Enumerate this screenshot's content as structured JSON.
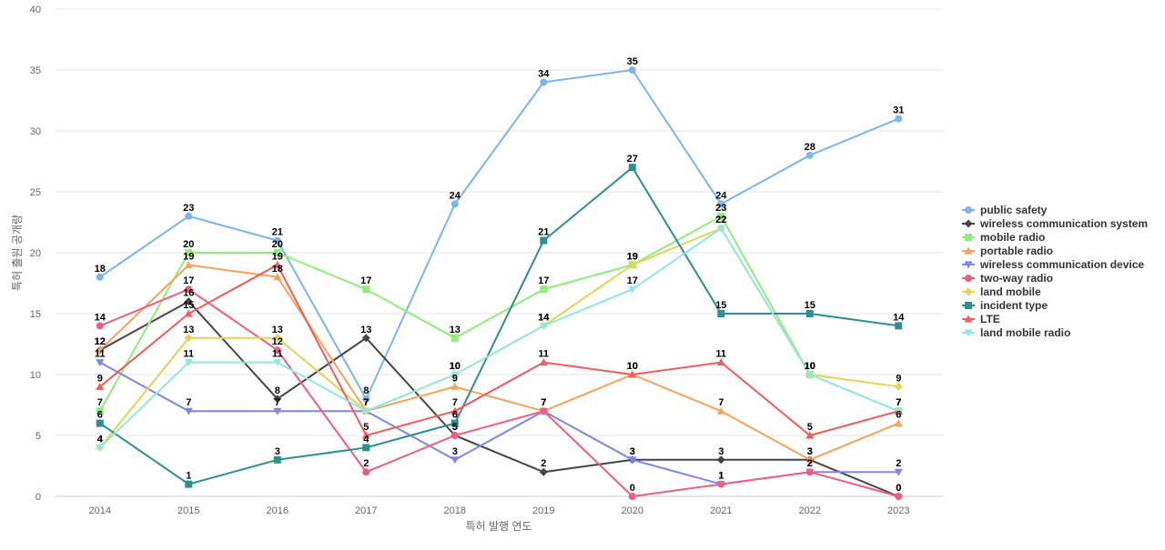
{
  "chart_data": {
    "type": "line",
    "xlabel": "특허 발행 연도",
    "ylabel": "특허 출원 공개량",
    "x": [
      "2014",
      "2015",
      "2016",
      "2017",
      "2018",
      "2019",
      "2020",
      "2021",
      "2022",
      "2023"
    ],
    "ylim": [
      0,
      40
    ],
    "yticks": [
      0,
      5,
      10,
      15,
      20,
      25,
      30,
      35,
      40
    ],
    "grid": "horizontal",
    "legend_position": "right",
    "data_labels": true,
    "series": [
      {
        "name": "public safety",
        "color": "#7cb5ec",
        "marker": "circle",
        "values": [
          18,
          23,
          21,
          8,
          24,
          34,
          35,
          24,
          28,
          31
        ]
      },
      {
        "name": "wireless communication system",
        "color": "#434348",
        "marker": "diamond",
        "values": [
          12,
          16,
          8,
          13,
          5,
          2,
          3,
          3,
          3,
          0
        ]
      },
      {
        "name": "mobile radio",
        "color": "#90ed7d",
        "marker": "square",
        "values": [
          7,
          20,
          20,
          17,
          13,
          17,
          19,
          23,
          10,
          7
        ]
      },
      {
        "name": "portable radio",
        "color": "#f7a35c",
        "marker": "triangle",
        "values": [
          12,
          19,
          18,
          7,
          9,
          7,
          10,
          7,
          3,
          6
        ]
      },
      {
        "name": "wireless communication device",
        "color": "#8085e9",
        "marker": "triangle-down",
        "values": [
          11,
          7,
          7,
          7,
          3,
          7,
          3,
          1,
          2,
          2
        ]
      },
      {
        "name": "two-way radio",
        "color": "#f15c80",
        "marker": "circle",
        "values": [
          14,
          17,
          12,
          2,
          5,
          7,
          0,
          1,
          2,
          0
        ]
      },
      {
        "name": "land mobile",
        "color": "#e4d354",
        "marker": "diamond",
        "values": [
          4,
          13,
          13,
          7,
          10,
          14,
          19,
          22,
          10,
          9
        ]
      },
      {
        "name": "incident type",
        "color": "#2b908f",
        "marker": "square",
        "values": [
          6,
          1,
          3,
          4,
          6,
          21,
          27,
          15,
          15,
          14
        ]
      },
      {
        "name": "LTE",
        "color": "#f45b5b",
        "marker": "triangle",
        "values": [
          9,
          15,
          19,
          5,
          7,
          11,
          10,
          11,
          5,
          7
        ]
      },
      {
        "name": "land mobile radio",
        "color": "#91e8e1",
        "marker": "triangle-down",
        "values": [
          4,
          11,
          11,
          7,
          10,
          14,
          17,
          22,
          10,
          7
        ]
      }
    ]
  }
}
